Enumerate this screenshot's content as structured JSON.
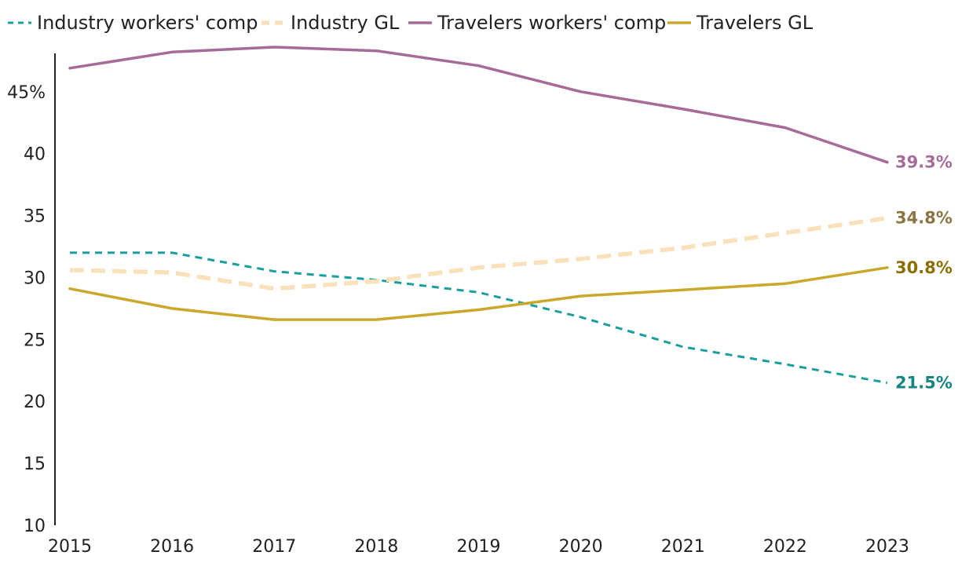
{
  "chart_data": {
    "type": "line",
    "title": "",
    "xlabel": "",
    "ylabel": "",
    "x": [
      "2015",
      "2016",
      "2017",
      "2018",
      "2019",
      "2020",
      "2021",
      "2022",
      "2023"
    ],
    "ylim": [
      10,
      48.6
    ],
    "yticks": [
      10,
      15,
      20,
      25,
      30,
      35,
      40,
      45
    ],
    "ytick_labels": [
      "10",
      "15",
      "20",
      "25",
      "30",
      "35",
      "40",
      "45%"
    ],
    "grid": false,
    "legend_position": "top-left",
    "series": [
      {
        "name": "Industry workers' comp",
        "color": "#1a9e9e",
        "style": "dashed",
        "values": [
          32.0,
          32.0,
          30.5,
          29.8,
          28.8,
          26.8,
          24.4,
          23.0,
          21.5
        ],
        "end_label": "21.5%",
        "end_label_color": "#168484"
      },
      {
        "name": "Industry GL",
        "color": "#f9e2bb",
        "style": "dashed-thick",
        "values": [
          30.6,
          30.4,
          29.1,
          29.7,
          30.8,
          31.5,
          32.4,
          33.6,
          34.8
        ],
        "end_label": "34.8%",
        "end_label_color": "#8b7543"
      },
      {
        "name": "Travelers workers' comp",
        "color": "#a66b98",
        "style": "solid",
        "values": [
          46.9,
          48.2,
          48.6,
          48.3,
          47.1,
          45.0,
          43.6,
          42.1,
          39.3
        ],
        "end_label": "39.3%",
        "end_label_color": "#a66b98"
      },
      {
        "name": "Travelers GL",
        "color": "#c9a82c",
        "style": "solid",
        "values": [
          29.1,
          27.5,
          26.6,
          26.6,
          27.4,
          28.5,
          29.0,
          29.5,
          30.8
        ],
        "end_label": "30.8%",
        "end_label_color": "#8a6e00"
      }
    ]
  }
}
